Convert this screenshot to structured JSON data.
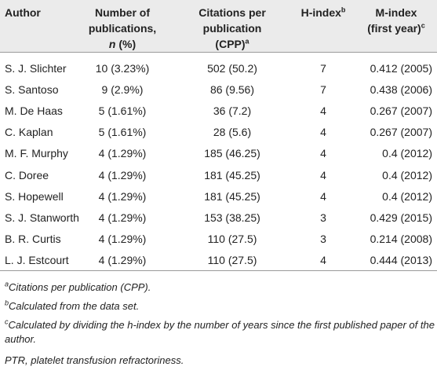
{
  "table": {
    "header": [
      {
        "lines": [
          "Author"
        ]
      },
      {
        "lines": [
          "Number of",
          "publications,"
        ],
        "variable": "n",
        "suffix": " (%)"
      },
      {
        "lines": [
          "Citations per",
          "publication",
          "(CPP)"
        ],
        "note": "a"
      },
      {
        "lines": [
          "H-index"
        ],
        "note": "b"
      },
      {
        "lines": [
          "M-index",
          "(first year)"
        ],
        "note": "c"
      }
    ],
    "rows": [
      [
        "S. J. Slichter",
        "10 (3.23%)",
        "502 (50.2)",
        "7",
        "0.412 (2005)"
      ],
      [
        "S. Santoso",
        "9 (2.9%)",
        "86 (9.56)",
        "7",
        "0.438 (2006)"
      ],
      [
        "M. De Haas",
        "5 (1.61%)",
        "36 (7.2)",
        "4",
        "0.267 (2007)"
      ],
      [
        "C. Kaplan",
        "5 (1.61%)",
        "28 (5.6)",
        "4",
        "0.267 (2007)"
      ],
      [
        "M. F. Murphy",
        "4 (1.29%)",
        "185 (46.25)",
        "4",
        "0.4 (2012)"
      ],
      [
        "C. Doree",
        "4 (1.29%)",
        "181 (45.25)",
        "4",
        "0.4 (2012)"
      ],
      [
        "S. Hopewell",
        "4 (1.29%)",
        "181 (45.25)",
        "4",
        "0.4 (2012)"
      ],
      [
        "S. J. Stanworth",
        "4 (1.29%)",
        "153 (38.25)",
        "3",
        "0.429 (2015)"
      ],
      [
        "B. R. Curtis",
        "4 (1.29%)",
        "110 (27.5)",
        "3",
        "0.214 (2008)"
      ],
      [
        "L. J. Estcourt",
        "4 (1.29%)",
        "110 (27.5)",
        "4",
        "0.444 (2013)"
      ]
    ],
    "footnotes": [
      {
        "mark": "a",
        "text": "Citations per publication (CPP)."
      },
      {
        "mark": "b",
        "text": "Calculated from the data set."
      },
      {
        "mark": "c",
        "text": "Calculated by dividing the h-index by the number of years since the first published paper of the author."
      },
      {
        "text": "PTR, platelet transfusion refractoriness."
      }
    ]
  }
}
